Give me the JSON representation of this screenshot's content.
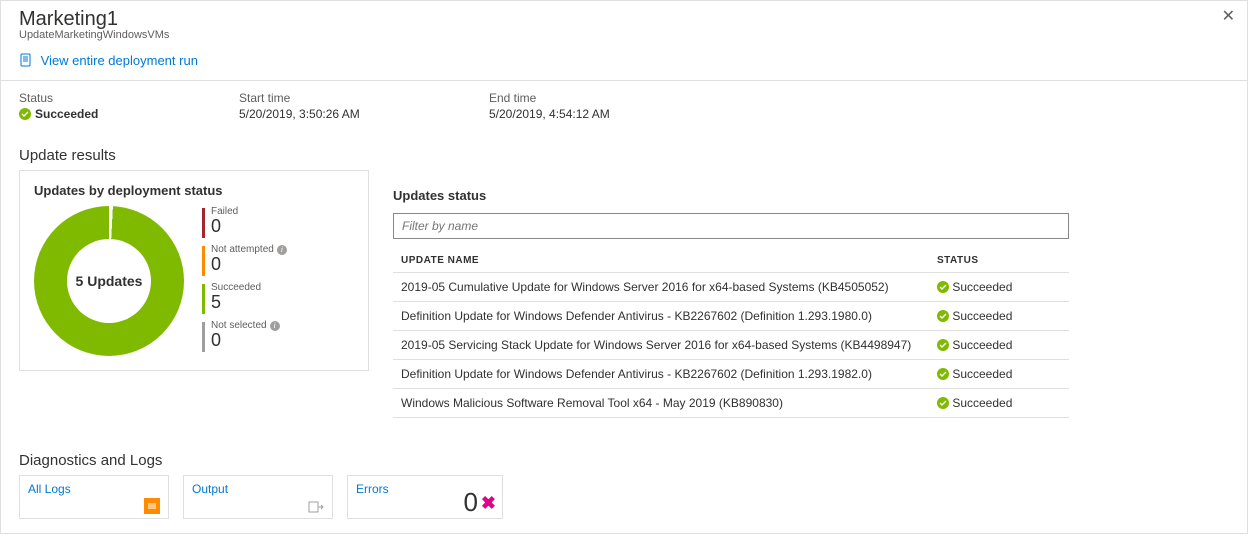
{
  "header": {
    "title": "Marketing1",
    "subtitle": "UpdateMarketingWindowsVMs",
    "view_link": "View entire deployment run"
  },
  "meta": {
    "status_label": "Status",
    "status_value": "Succeeded",
    "start_label": "Start time",
    "start_value": "5/20/2019, 3:50:26 AM",
    "end_label": "End time",
    "end_value": "5/20/2019, 4:54:12 AM"
  },
  "update_results": {
    "section_title": "Update results",
    "card_title": "Updates by deployment status",
    "donut": {
      "center_label": "5 Updates",
      "total": 5,
      "ring_color": "#7fba00",
      "gap_deg": 3
    },
    "legend": [
      {
        "label": "Failed",
        "value": 0,
        "color": "#a4262c",
        "info": false
      },
      {
        "label": "Not attempted",
        "value": 0,
        "color": "#ff8c00",
        "info": true
      },
      {
        "label": "Succeeded",
        "value": 5,
        "color": "#7fba00",
        "info": false
      },
      {
        "label": "Not selected",
        "value": 0,
        "color": "#a19f9d",
        "info": true
      }
    ]
  },
  "updates_status": {
    "title": "Updates status",
    "filter_placeholder": "Filter by name",
    "columns": {
      "name": "UPDATE NAME",
      "status": "STATUS"
    },
    "rows": [
      {
        "name": "2019-05 Cumulative Update for Windows Server 2016 for x64-based Systems (KB4505052)",
        "status": "Succeeded"
      },
      {
        "name": "Definition Update for Windows Defender Antivirus - KB2267602 (Definition 1.293.1980.0)",
        "status": "Succeeded"
      },
      {
        "name": "2019-05 Servicing Stack Update for Windows Server 2016 for x64-based Systems (KB4498947)",
        "status": "Succeeded"
      },
      {
        "name": "Definition Update for Windows Defender Antivirus - KB2267602 (Definition 1.293.1982.0)",
        "status": "Succeeded"
      },
      {
        "name": "Windows Malicious Software Removal Tool x64 - May 2019 (KB890830)",
        "status": "Succeeded"
      }
    ]
  },
  "diagnostics": {
    "title": "Diagnostics and Logs",
    "tiles": {
      "all_logs": "All Logs",
      "output": "Output",
      "errors_label": "Errors",
      "errors_value": "0"
    }
  },
  "colors": {
    "link": "#0078d4",
    "success": "#7fba00",
    "error_pink": "#e3008c",
    "border": "#e1dfdd"
  }
}
